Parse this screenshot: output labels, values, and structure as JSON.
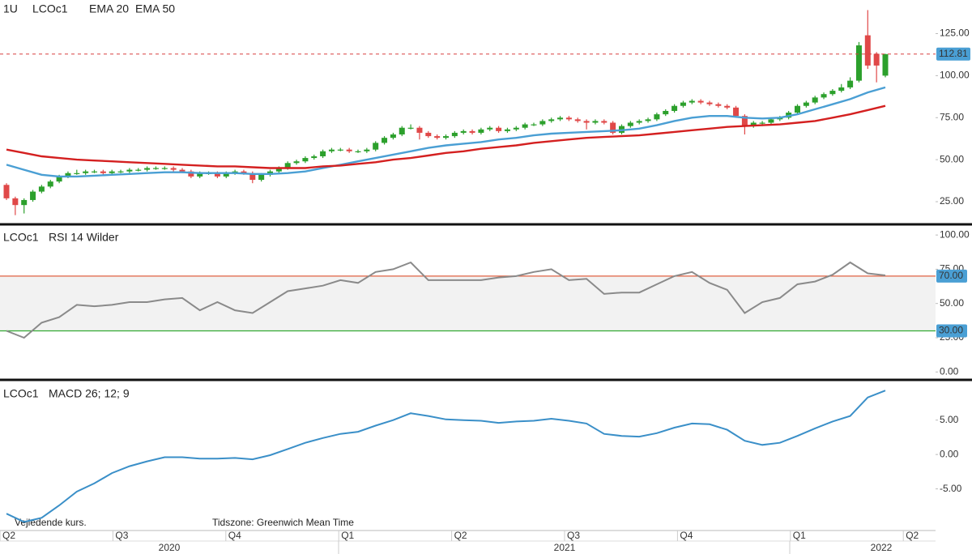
{
  "chart_data": [
    {
      "type": "candlestick",
      "interval": "1U",
      "symbol": "LCOc1",
      "up_color": "#2ca02c",
      "down_color": "#e04848",
      "open": [
        35,
        27,
        23,
        26,
        31,
        34,
        37,
        40,
        42,
        42,
        43,
        43,
        42,
        43,
        43,
        44,
        44,
        45,
        45,
        45,
        44,
        43,
        40,
        42,
        42,
        40,
        42,
        43,
        42,
        38,
        41,
        43,
        45,
        48,
        49,
        51,
        52,
        55,
        56,
        56,
        55,
        55,
        56,
        60,
        63,
        65,
        69,
        69,
        66,
        64,
        63,
        64,
        66,
        67,
        66,
        68,
        69,
        67,
        68,
        69,
        71,
        71,
        73,
        74,
        75,
        74,
        73,
        72,
        73,
        72,
        66,
        70,
        72,
        73,
        74,
        77,
        79,
        82,
        84,
        85,
        84,
        83,
        82,
        81,
        76,
        70,
        72,
        72,
        74,
        75,
        78,
        82,
        84,
        87,
        89,
        91,
        93,
        97,
        124,
        113,
        100
      ],
      "high": [
        36,
        28,
        27,
        32,
        35,
        38,
        41,
        43,
        44,
        44,
        44,
        44,
        44,
        44,
        45,
        45,
        46,
        46,
        46,
        46,
        45,
        44,
        43,
        43,
        43,
        43,
        44,
        44,
        43,
        42,
        44,
        46,
        49,
        50,
        52,
        53,
        56,
        57,
        57,
        57,
        56,
        57,
        61,
        64,
        66,
        70,
        71,
        70,
        67,
        65,
        65,
        67,
        68,
        68,
        69,
        70,
        70,
        69,
        70,
        72,
        72,
        74,
        75,
        76,
        76,
        75,
        74,
        74,
        74,
        73,
        71,
        73,
        74,
        75,
        78,
        80,
        83,
        85,
        86,
        86,
        85,
        84,
        83,
        82,
        77,
        73,
        73,
        75,
        76,
        79,
        83,
        85,
        88,
        90,
        92,
        95,
        99,
        120,
        139,
        114,
        113
      ],
      "low": [
        26,
        17,
        18,
        25,
        30,
        33,
        36,
        39,
        41,
        41,
        42,
        41,
        41,
        42,
        42,
        43,
        43,
        44,
        44,
        43,
        42,
        39,
        39,
        41,
        39,
        39,
        41,
        41,
        36,
        37,
        40,
        42,
        44,
        47,
        48,
        50,
        51,
        54,
        55,
        54,
        54,
        54,
        55,
        59,
        62,
        64,
        68,
        62,
        63,
        62,
        62,
        63,
        65,
        65,
        65,
        67,
        66,
        66,
        67,
        68,
        70,
        70,
        72,
        73,
        73,
        72,
        68,
        71,
        71,
        65,
        65,
        69,
        71,
        72,
        73,
        76,
        78,
        81,
        83,
        83,
        82,
        81,
        80,
        75,
        65,
        69,
        70,
        71,
        73,
        74,
        77,
        81,
        83,
        86,
        88,
        90,
        92,
        96,
        104,
        96,
        99
      ],
      "close": [
        27,
        23,
        26,
        31,
        34,
        37,
        40,
        42,
        42,
        43,
        43,
        42,
        43,
        43,
        44,
        44,
        45,
        45,
        45,
        44,
        43,
        40,
        42,
        42,
        40,
        42,
        43,
        42,
        38,
        41,
        43,
        45,
        48,
        49,
        51,
        52,
        55,
        56,
        56,
        55,
        55,
        56,
        60,
        63,
        65,
        69,
        69,
        66,
        64,
        63,
        64,
        66,
        67,
        66,
        68,
        69,
        67,
        68,
        69,
        71,
        71,
        73,
        74,
        75,
        74,
        73,
        72,
        73,
        72,
        66,
        70,
        72,
        73,
        74,
        77,
        79,
        82,
        84,
        85,
        84,
        83,
        82,
        81,
        76,
        70,
        72,
        72,
        74,
        75,
        78,
        82,
        84,
        87,
        89,
        91,
        93,
        97,
        118,
        106,
        106,
        112.81
      ],
      "series": [
        {
          "name": "EMA 20",
          "color": "#4a9fd4",
          "values": [
            47,
            44,
            41,
            40,
            40,
            40.5,
            41,
            41.5,
            42,
            42.5,
            42.5,
            42,
            42,
            42,
            41.5,
            41.5,
            42,
            43,
            45,
            47,
            49,
            51,
            53,
            55,
            57,
            58.5,
            59.5,
            60.5,
            62,
            63,
            64.5,
            65.5,
            66,
            66.5,
            67,
            67.5,
            68.5,
            70.5,
            73,
            75,
            76,
            76,
            75,
            74.5,
            75,
            77,
            80,
            83,
            86,
            90,
            93
          ]
        },
        {
          "name": "EMA 50",
          "color": "#d42020",
          "values": [
            56,
            54,
            52,
            51,
            50,
            49.5,
            49,
            48.5,
            48,
            47.5,
            47,
            46.5,
            46,
            46,
            45.5,
            45,
            45,
            45,
            46,
            46.5,
            47.5,
            48.5,
            50,
            51,
            52.5,
            54,
            55,
            56.5,
            57.5,
            58.5,
            60,
            61,
            62,
            63,
            63.5,
            64,
            64.5,
            65.5,
            66.5,
            67.5,
            68.5,
            69.5,
            70,
            70.5,
            71,
            72,
            73,
            75,
            77,
            79.5,
            82
          ]
        }
      ],
      "last_price": 112.81,
      "ylim": [
        12,
        145
      ],
      "yticks": [
        {
          "value": 25,
          "label": "25.00"
        },
        {
          "value": 50,
          "label": "50.00"
        },
        {
          "value": 75,
          "label": "75.00"
        },
        {
          "value": 100,
          "label": "100.00"
        },
        {
          "value": 125,
          "label": "125.00"
        }
      ]
    },
    {
      "type": "line",
      "symbol": "LCOc1",
      "series": [
        {
          "name": "RSI 14 Wilder",
          "color": "#8a8a8a",
          "values": [
            30,
            25,
            36,
            40,
            49,
            48,
            49,
            51,
            51,
            53,
            54,
            45,
            51,
            45,
            43,
            51,
            59,
            61,
            63,
            67,
            65,
            73,
            75,
            80,
            67,
            67,
            67,
            67,
            69,
            70,
            73,
            75,
            67,
            68,
            57,
            58,
            58,
            64,
            70,
            73,
            65,
            60,
            43,
            51,
            54,
            64,
            66,
            71,
            80,
            72,
            70.5
          ]
        }
      ],
      "levels": [
        {
          "value": 70,
          "label": "70.00",
          "color": "#e06040"
        },
        {
          "value": 30,
          "label": "30.00",
          "color": "#33aa33"
        }
      ],
      "ylim": [
        -4,
        106
      ],
      "yticks": [
        {
          "value": 0,
          "label": "0.00"
        },
        {
          "value": 25,
          "label": "25.00"
        },
        {
          "value": 50,
          "label": "50.00"
        },
        {
          "value": 75,
          "label": "75.00"
        },
        {
          "value": 100,
          "label": "100.00"
        }
      ]
    },
    {
      "type": "line",
      "symbol": "LCOc1",
      "series": [
        {
          "name": "MACD 26; 12; 9",
          "color": "#3a8fc8",
          "values": [
            -8.6,
            -9.8,
            -9.2,
            -7.4,
            -5.4,
            -4.2,
            -2.7,
            -1.7,
            -1,
            -0.4,
            -0.4,
            -0.6,
            -0.6,
            -0.5,
            -0.7,
            -0.1,
            0.8,
            1.7,
            2.4,
            3,
            3.3,
            4.2,
            5,
            6,
            5.6,
            5.1,
            5,
            4.9,
            4.6,
            4.8,
            4.9,
            5.2,
            4.9,
            4.5,
            3,
            2.7,
            2.6,
            3.1,
            3.9,
            4.5,
            4.4,
            3.6,
            2,
            1.4,
            1.7,
            2.7,
            3.8,
            4.8,
            5.6,
            8.3,
            9.3
          ]
        }
      ],
      "ylim": [
        -10.7,
        10.5
      ],
      "yticks": [
        {
          "value": -5,
          "label": "-5.00"
        },
        {
          "value": 0,
          "label": "0.00"
        },
        {
          "value": 5,
          "label": "5.00"
        }
      ]
    }
  ],
  "x_axis": {
    "quarters": [
      "Q2",
      "Q3",
      "Q4",
      "Q1",
      "Q2",
      "Q3",
      "Q4",
      "Q1",
      "Q2"
    ],
    "years": [
      "2020",
      "2021",
      "2022"
    ]
  },
  "footnotes": [
    "Vejledende kurs.",
    "Tidszone: Greenwich Mean Time"
  ]
}
